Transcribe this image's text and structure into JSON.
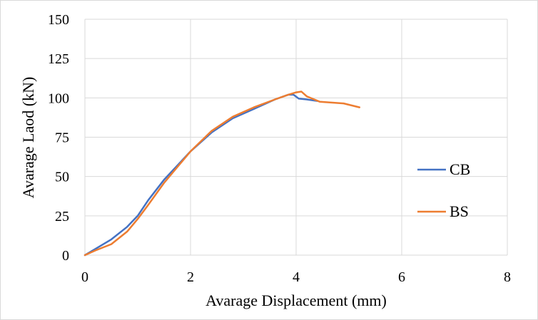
{
  "chart_data": {
    "type": "line",
    "title": "",
    "xlabel": "Avarage Displacement (mm)",
    "ylabel": "Avarage Laod (kN)",
    "xlim": [
      0,
      8
    ],
    "ylim": [
      0,
      150
    ],
    "xticks": [
      0,
      2,
      4,
      6,
      8
    ],
    "yticks": [
      0,
      25,
      50,
      75,
      100,
      125,
      150
    ],
    "xtick_labels": [
      "0",
      "2",
      "4",
      "6",
      "8"
    ],
    "ytick_labels": [
      "0",
      "25",
      "50",
      "75",
      "100",
      "125",
      "150"
    ],
    "grid": true,
    "legend_position": "right",
    "series": [
      {
        "name": "CB",
        "color": "#4472C4",
        "x": [
          0,
          0.2,
          0.5,
          0.8,
          1.0,
          1.2,
          1.5,
          2.0,
          2.4,
          2.8,
          3.2,
          3.6,
          3.85,
          3.95,
          4.05,
          4.2,
          4.4
        ],
        "y": [
          0,
          4,
          10,
          18,
          25,
          35,
          48,
          66,
          78,
          87,
          93,
          99,
          102,
          102,
          99.5,
          99,
          98
        ]
      },
      {
        "name": "BS",
        "color": "#ED7D31",
        "x": [
          0,
          0.2,
          0.5,
          0.8,
          1.0,
          1.2,
          1.5,
          2.0,
          2.4,
          2.8,
          3.2,
          3.6,
          3.85,
          4.0,
          4.1,
          4.2,
          4.45,
          4.9,
          5.2
        ],
        "y": [
          0,
          3,
          7,
          15,
          23,
          32,
          46,
          66,
          79,
          88,
          94,
          99,
          102,
          103.5,
          104,
          101,
          97.5,
          96.5,
          94
        ]
      }
    ]
  }
}
